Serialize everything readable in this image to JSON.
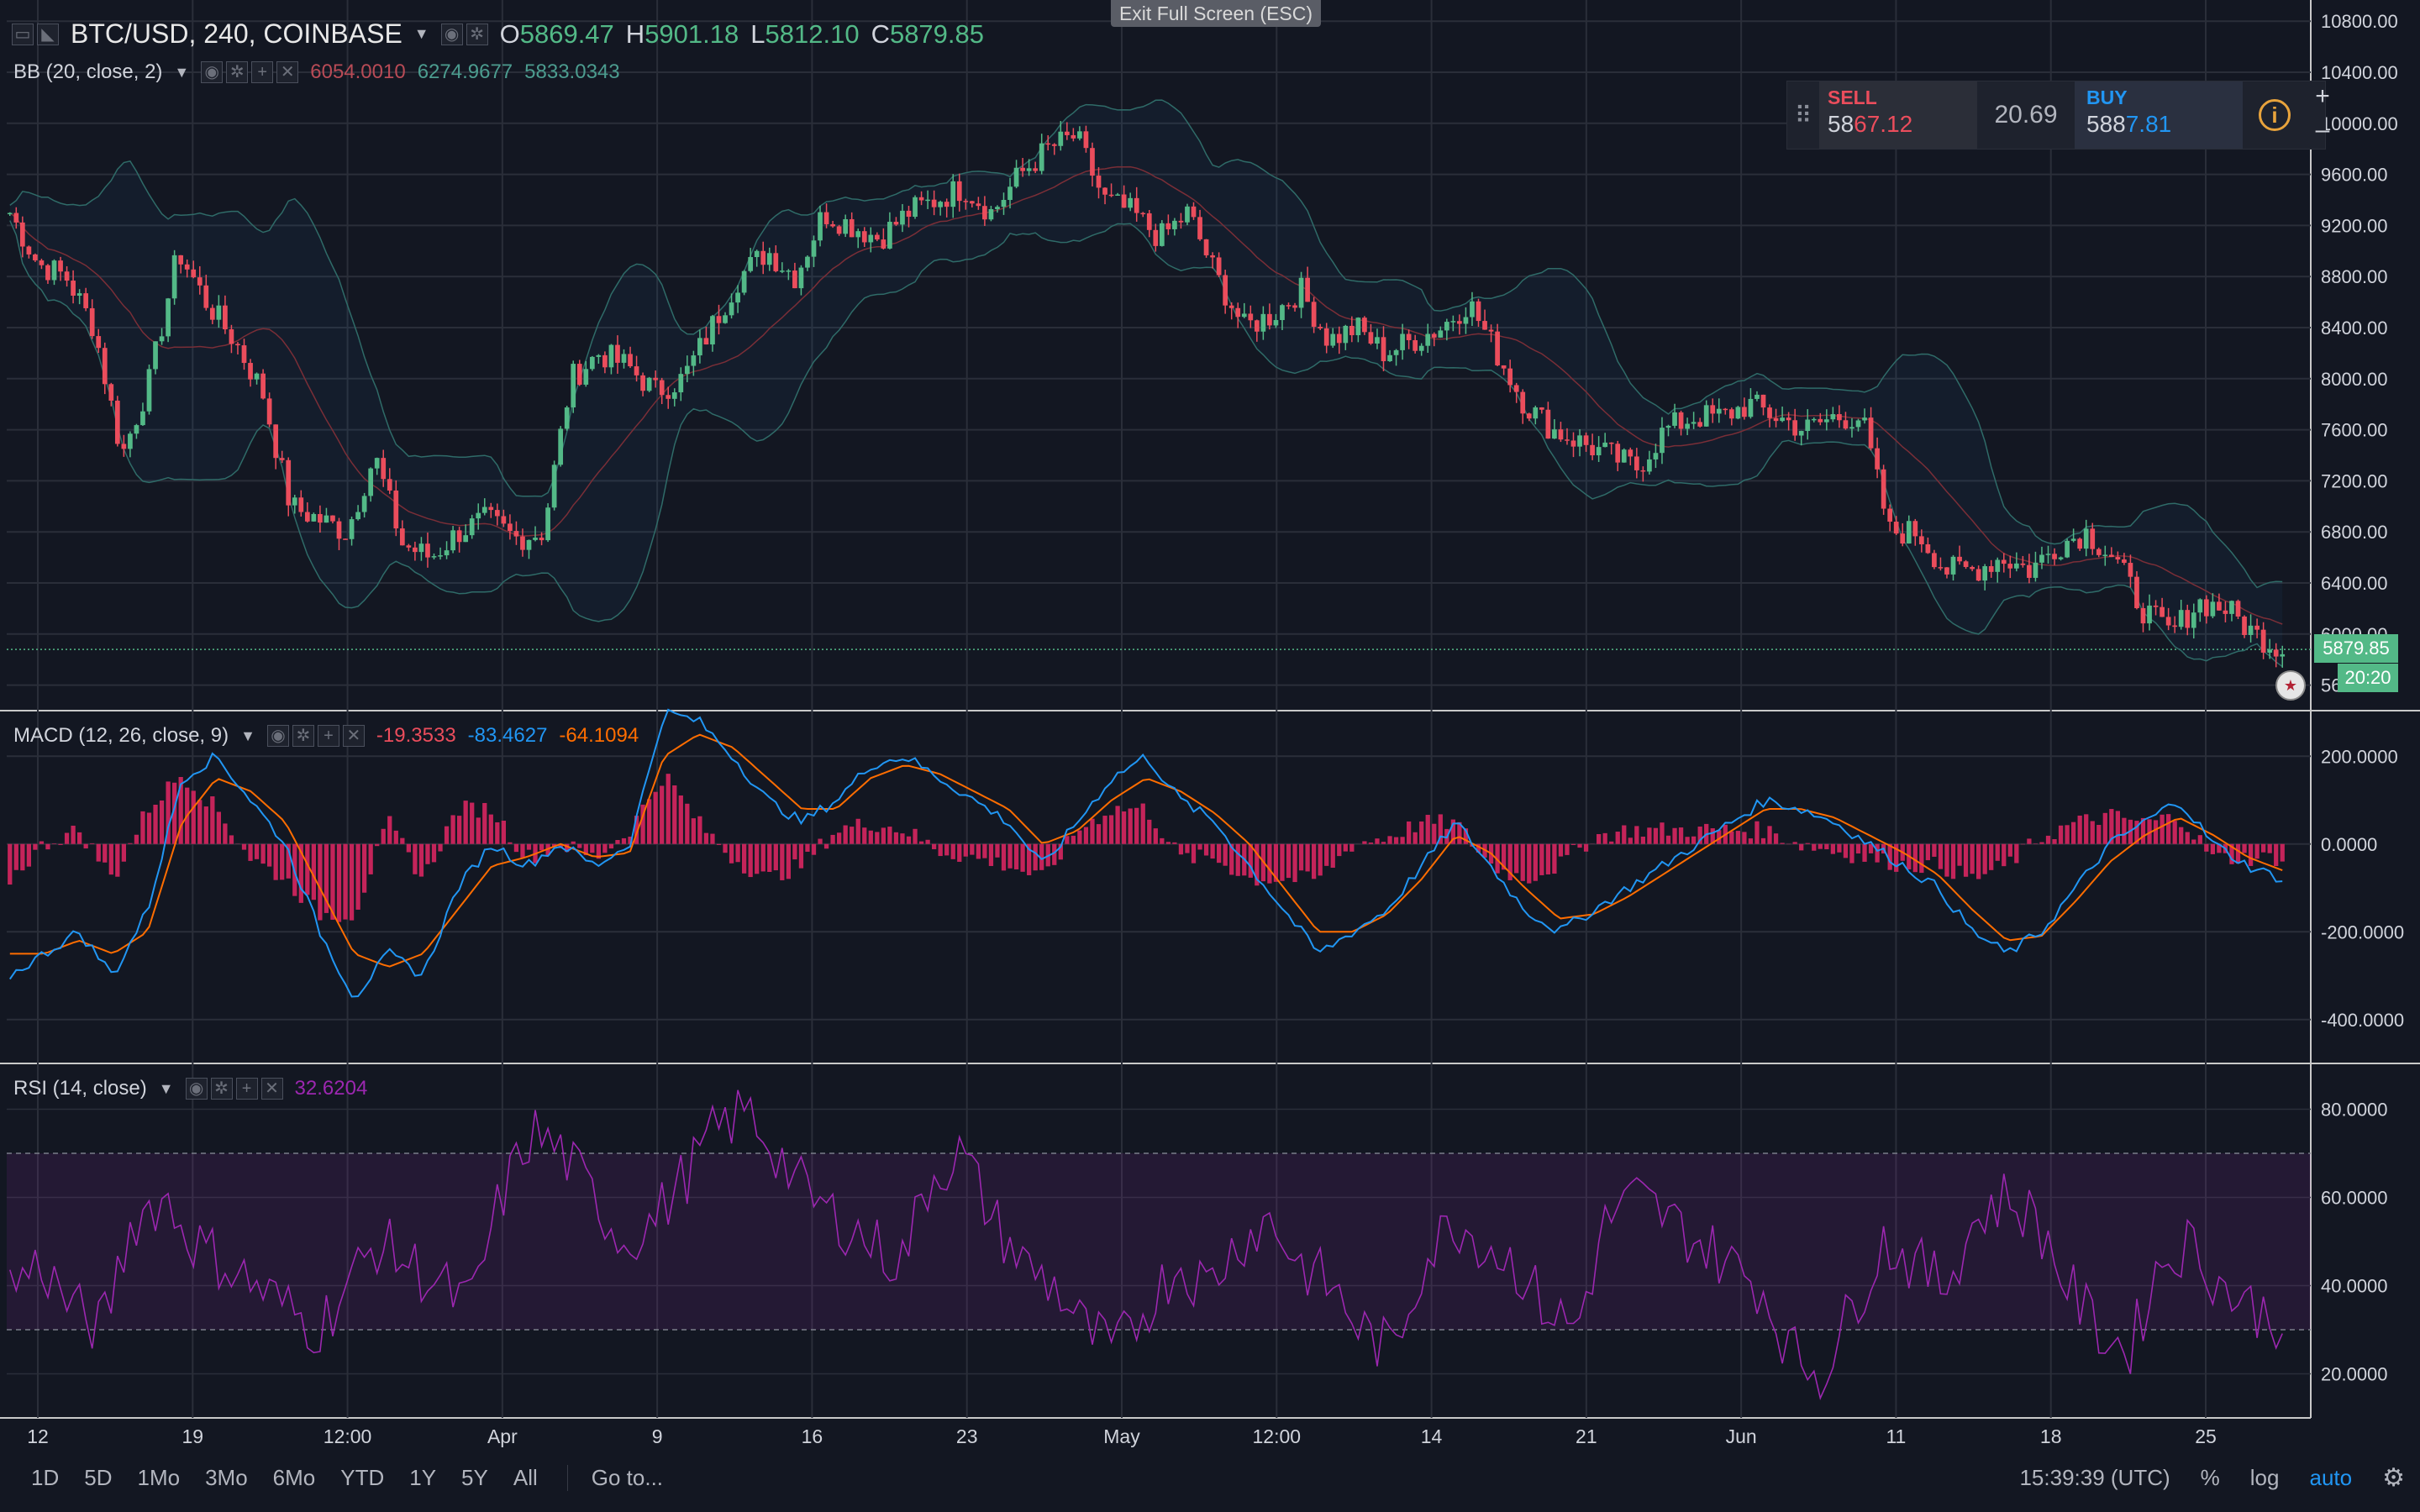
{
  "window": {
    "exit_fullscreen_label": "Exit Full Screen (ESC)"
  },
  "header": {
    "symbol": "BTC/USD, 240, COINBASE",
    "open_key": "O",
    "open": "5869.47",
    "high_key": "H",
    "high": "5901.18",
    "low_key": "L",
    "low": "5812.10",
    "close_key": "C",
    "close": "5879.85"
  },
  "indicators": {
    "bb": {
      "label": "BB (20, close, 2)",
      "v1": "6054.0010",
      "v2": "6274.9677",
      "v3": "5833.0343"
    },
    "macd": {
      "label": "MACD (12, 26, close, 9)",
      "v1": "-19.3533",
      "v2": "-83.4627",
      "v3": "-64.1094"
    },
    "rsi": {
      "label": "RSI (14, close)",
      "v1": "32.6204"
    }
  },
  "trade_panel": {
    "sell_label": "SELL",
    "sell_price_a": "58",
    "sell_price_b": "67.12",
    "spread": "20.69",
    "buy_label": "BUY",
    "buy_price_a": "588",
    "buy_price_b": "7.81",
    "zoom_in": "+",
    "zoom_out": "–"
  },
  "price_tags": {
    "last_price": "5879.85",
    "countdown": "20:20"
  },
  "axes": {
    "price_ticks": [
      "10800.00",
      "10400.00",
      "10000.00",
      "9600.00",
      "9200.00",
      "8800.00",
      "8400.00",
      "8000.00",
      "7600.00",
      "7200.00",
      "6800.00",
      "6400.00",
      "6000.00",
      "5600.00"
    ],
    "macd_ticks": [
      "200.0000",
      "0.0000",
      "-200.0000",
      "-400.0000"
    ],
    "rsi_ticks": [
      "80.0000",
      "60.0000",
      "40.0000",
      "20.0000"
    ],
    "time_labels": [
      "12",
      "19",
      "12:00",
      "Apr",
      "9",
      "16",
      "23",
      "May",
      "12:00",
      "14",
      "21",
      "Jun",
      "11",
      "18",
      "25"
    ]
  },
  "bottom_toolbar": {
    "timeframes": [
      "1D",
      "5D",
      "1Mo",
      "3Mo",
      "6Mo",
      "YTD",
      "1Y",
      "5Y",
      "All"
    ],
    "goto": "Go to...",
    "clock": "15:39:39 (UTC)",
    "percent": "%",
    "log": "log",
    "auto": "auto"
  },
  "colors": {
    "up": "#53b987",
    "down": "#eb4d5c",
    "macd": "#2196f3",
    "signal": "#ff6d00",
    "rsi": "#9c27b0",
    "bg": "#131722"
  },
  "chart_data": [
    {
      "type": "candlestick",
      "x": [
        "12",
        "19",
        "12:00",
        "Apr",
        "9",
        "16",
        "23",
        "May",
        "12:00",
        "14",
        "21",
        "Jun",
        "11",
        "18",
        "25"
      ],
      "close_path": [
        9300,
        8900,
        8800,
        8400,
        7400,
        8000,
        9000,
        8600,
        8300,
        7900,
        7000,
        6900,
        6800,
        7400,
        6700,
        6600,
        6800,
        6900,
        6750,
        6800,
        8000,
        8200,
        8100,
        7900,
        8000,
        8400,
        8800,
        9000,
        8800,
        9300,
        9200,
        9100,
        9300,
        9400,
        9500,
        9300,
        9600,
        9800,
        9900,
        9400,
        9300,
        9100,
        9300,
        8800,
        8400,
        8500,
        8700,
        8300,
        8400,
        8200,
        8300,
        8400,
        8600,
        8200,
        7800,
        7600,
        7500,
        7400,
        7300,
        7600,
        7700,
        7700,
        7800,
        7700,
        7600,
        7700,
        7700,
        6800,
        6800,
        6500,
        6500,
        6600,
        6500,
        6700,
        6800,
        6600,
        6200,
        6000,
        6250,
        6200,
        6000,
        5880
      ],
      "bb_values": {
        "basis": "6054.0010",
        "upper": "6274.9677",
        "lower": "5833.0343"
      },
      "ylim": [
        5400,
        10900
      ]
    },
    {
      "type": "line",
      "macd_ylim": [
        -500,
        300
      ],
      "macd": [
        -300,
        -250,
        -200,
        -300,
        -150,
        150,
        200,
        100,
        0,
        -200,
        -350,
        -250,
        -300,
        -100,
        0,
        -50,
        0,
        -50,
        0,
        300,
        280,
        200,
        100,
        50,
        100,
        180,
        200,
        150,
        100,
        50,
        -50,
        50,
        150,
        200,
        100,
        50,
        -50,
        -150,
        -250,
        -200,
        -150,
        -50,
        50,
        -50,
        -150,
        -200,
        -150,
        -100,
        -50,
        0,
        50,
        100,
        80,
        50,
        0,
        -50,
        -100,
        -200,
        -250,
        -200,
        -100,
        0,
        50,
        100,
        0,
        -50,
        -80
      ],
      "signal": [
        -250,
        -250,
        -220,
        -250,
        -200,
        50,
        150,
        120,
        50,
        -100,
        -250,
        -280,
        -250,
        -150,
        -50,
        -30,
        0,
        -30,
        -20,
        200,
        250,
        220,
        150,
        80,
        80,
        150,
        180,
        160,
        120,
        80,
        0,
        30,
        100,
        150,
        120,
        70,
        0,
        -100,
        -200,
        -200,
        -160,
        -80,
        20,
        -20,
        -100,
        -170,
        -160,
        -120,
        -70,
        -20,
        30,
        80,
        80,
        60,
        20,
        -20,
        -70,
        -150,
        -220,
        -210,
        -130,
        -40,
        20,
        60,
        20,
        -30,
        -60
      ],
      "series": []
    },
    {
      "type": "line",
      "rsi_ylim": [
        10,
        90
      ],
      "overbought": 70,
      "oversold": 30,
      "rsi": [
        40,
        45,
        35,
        30,
        55,
        60,
        50,
        45,
        40,
        35,
        30,
        40,
        50,
        45,
        40,
        35,
        60,
        75,
        70,
        60,
        50,
        55,
        65,
        75,
        80,
        70,
        60,
        55,
        50,
        45,
        65,
        70,
        55,
        45,
        40,
        30,
        25,
        35,
        45,
        40,
        50,
        55,
        45,
        40,
        30,
        25,
        45,
        55,
        50,
        45,
        35,
        30,
        55,
        60,
        55,
        50,
        45,
        40,
        25,
        20,
        35,
        50,
        45,
        40,
        55,
        60,
        55,
        40,
        30,
        25,
        45,
        50,
        40,
        35,
        32
      ]
    }
  ]
}
